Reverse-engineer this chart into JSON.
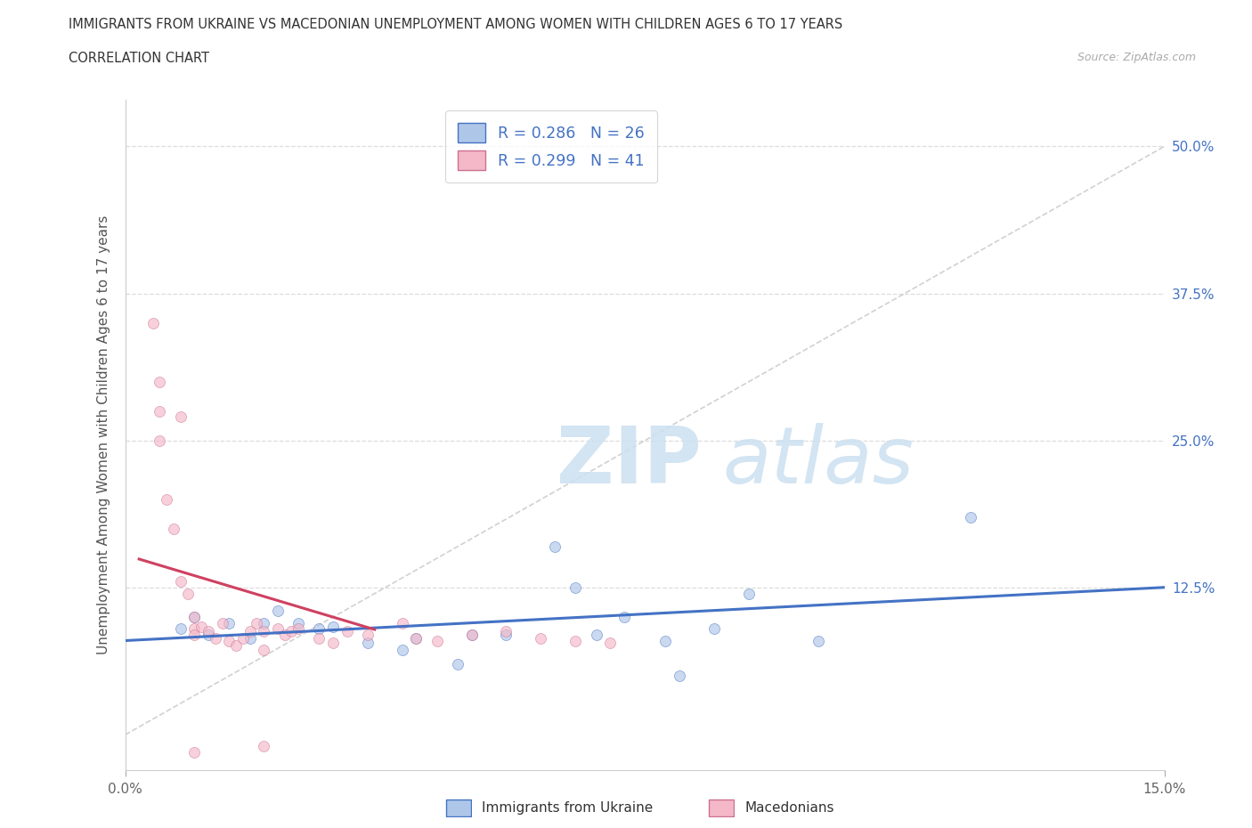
{
  "title_line1": "IMMIGRANTS FROM UKRAINE VS MACEDONIAN UNEMPLOYMENT AMONG WOMEN WITH CHILDREN AGES 6 TO 17 YEARS",
  "title_line2": "CORRELATION CHART",
  "source_text": "Source: ZipAtlas.com",
  "ylabel": "Unemployment Among Women with Children Ages 6 to 17 years",
  "xlim": [
    0.0,
    0.15
  ],
  "ylim": [
    -0.03,
    0.54
  ],
  "ytick_vals": [
    0.125,
    0.25,
    0.375,
    0.5
  ],
  "ytick_labels": [
    "12.5%",
    "25.0%",
    "37.5%",
    "50.0%"
  ],
  "legend1_label": "R = 0.286   N = 26",
  "legend2_label": "R = 0.299   N = 41",
  "ukraine_fill": "#aec6e8",
  "ukraine_edge": "#4472c4",
  "mac_fill": "#f4b8c8",
  "mac_edge": "#cc7090",
  "line_ukraine": "#4472c4",
  "line_mac": "#d04060",
  "diag_color": "#cccccc",
  "grid_color": "#dddddd",
  "bg_color": "#ffffff",
  "text_color": "#4472c4",
  "ukraine_data": [
    [
      0.008,
      0.09
    ],
    [
      0.01,
      0.1
    ],
    [
      0.012,
      0.085
    ],
    [
      0.015,
      0.095
    ],
    [
      0.018,
      0.082
    ],
    [
      0.02,
      0.095
    ],
    [
      0.022,
      0.105
    ],
    [
      0.025,
      0.095
    ],
    [
      0.028,
      0.09
    ],
    [
      0.03,
      0.092
    ],
    [
      0.035,
      0.078
    ],
    [
      0.04,
      0.072
    ],
    [
      0.042,
      0.082
    ],
    [
      0.048,
      0.06
    ],
    [
      0.05,
      0.085
    ],
    [
      0.055,
      0.085
    ],
    [
      0.062,
      0.16
    ],
    [
      0.065,
      0.125
    ],
    [
      0.068,
      0.085
    ],
    [
      0.072,
      0.1
    ],
    [
      0.078,
      0.08
    ],
    [
      0.08,
      0.05
    ],
    [
      0.085,
      0.09
    ],
    [
      0.09,
      0.12
    ],
    [
      0.1,
      0.08
    ],
    [
      0.122,
      0.185
    ]
  ],
  "mac_data": [
    [
      0.004,
      0.35
    ],
    [
      0.005,
      0.3
    ],
    [
      0.005,
      0.275
    ],
    [
      0.005,
      0.25
    ],
    [
      0.006,
      0.2
    ],
    [
      0.007,
      0.175
    ],
    [
      0.008,
      0.27
    ],
    [
      0.008,
      0.13
    ],
    [
      0.009,
      0.12
    ],
    [
      0.01,
      0.1
    ],
    [
      0.01,
      0.09
    ],
    [
      0.01,
      0.085
    ],
    [
      0.011,
      0.092
    ],
    [
      0.012,
      0.088
    ],
    [
      0.013,
      0.082
    ],
    [
      0.014,
      0.095
    ],
    [
      0.015,
      0.08
    ],
    [
      0.016,
      0.076
    ],
    [
      0.017,
      0.082
    ],
    [
      0.018,
      0.088
    ],
    [
      0.019,
      0.095
    ],
    [
      0.02,
      0.088
    ],
    [
      0.02,
      0.072
    ],
    [
      0.022,
      0.09
    ],
    [
      0.023,
      0.085
    ],
    [
      0.024,
      0.088
    ],
    [
      0.025,
      0.09
    ],
    [
      0.028,
      0.082
    ],
    [
      0.03,
      0.078
    ],
    [
      0.032,
      0.088
    ],
    [
      0.035,
      0.085
    ],
    [
      0.04,
      0.095
    ],
    [
      0.042,
      0.082
    ],
    [
      0.045,
      0.08
    ],
    [
      0.05,
      0.085
    ],
    [
      0.055,
      0.088
    ],
    [
      0.06,
      0.082
    ],
    [
      0.065,
      0.08
    ],
    [
      0.07,
      0.078
    ],
    [
      0.01,
      -0.015
    ],
    [
      0.02,
      -0.01
    ]
  ],
  "scatter_size": 75,
  "scatter_alpha": 0.65,
  "bottom_legend_ukraine": "Immigrants from Ukraine",
  "bottom_legend_mac": "Macedonians"
}
